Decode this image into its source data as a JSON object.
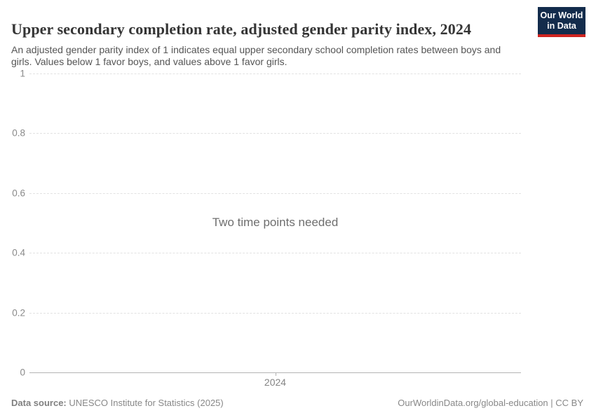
{
  "header": {
    "title": "Upper secondary completion rate, adjusted gender parity index, 2024",
    "subtitle": "An adjusted gender parity index of 1 indicates equal upper secondary school completion rates between boys and girls. Values below 1 favor boys, and values above 1 favor girls.",
    "logo": {
      "line1": "Our World",
      "line2": "in Data",
      "bg_color": "#132c4c",
      "stripe_color": "#cf2420"
    }
  },
  "chart_data": {
    "type": "line",
    "title": "Upper secondary completion rate, adjusted gender parity index, 2024",
    "xlabel": "",
    "ylabel": "",
    "ylim": [
      0,
      1
    ],
    "y_ticks": [
      {
        "label": "1",
        "value": 1
      },
      {
        "label": "0.8",
        "value": 0.8
      },
      {
        "label": "0.6",
        "value": 0.6
      },
      {
        "label": "0.4",
        "value": 0.4
      },
      {
        "label": "0.2",
        "value": 0.2
      },
      {
        "label": "0",
        "value": 0
      }
    ],
    "x_ticks": [
      "2024"
    ],
    "series": [],
    "empty_state_message": "Two time points needed",
    "grid": true,
    "gridline_color": "#e2e2e2",
    "axis_line_color": "#b3b3b3",
    "legend": "none"
  },
  "footer": {
    "source_label": "Data source:",
    "source_value": "UNESCO Institute for Statistics (2025)",
    "credit": "OurWorldinData.org/global-education | CC BY"
  }
}
